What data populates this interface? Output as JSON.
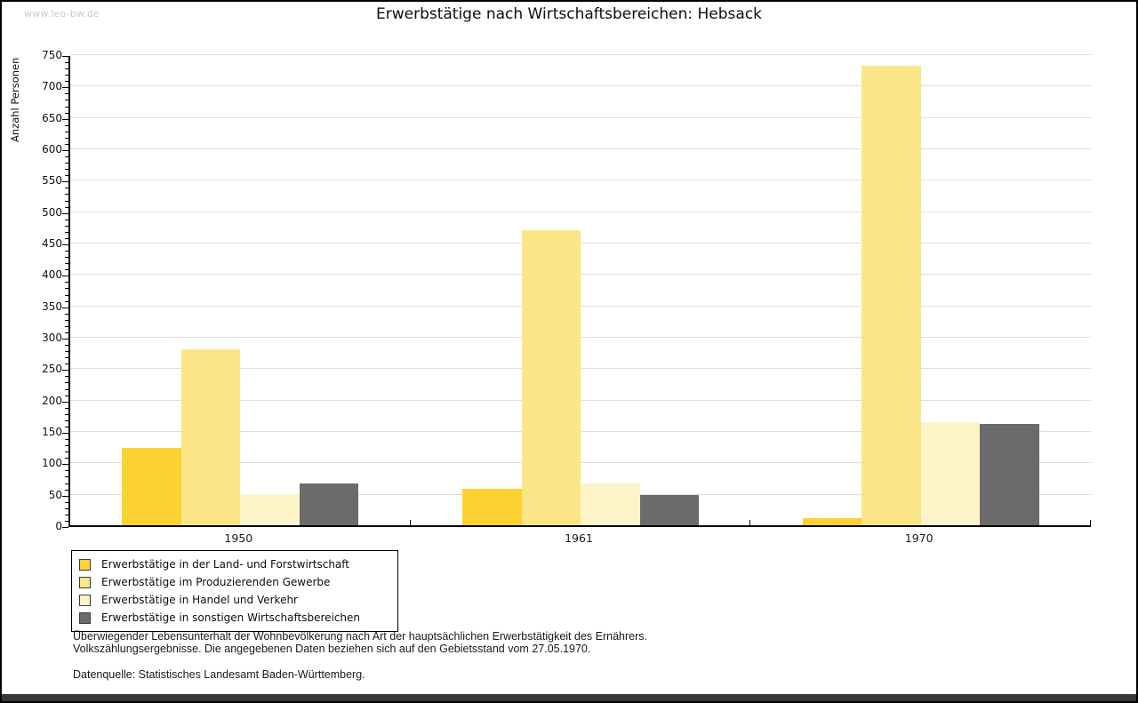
{
  "watermark": "www.leo-bw.de",
  "title": "Erwerbstätige nach Wirtschaftsbereichen: Hebsack",
  "chart_data": {
    "type": "bar",
    "title": "Erwerbstätige nach Wirtschaftsbereichen: Hebsack",
    "xlabel": "",
    "ylabel": "Anzahl Personen",
    "ylim": [
      0,
      750
    ],
    "ytick_step": 50,
    "y_minor_step": 10,
    "grid": true,
    "legend_position": "bottom-left",
    "categories": [
      "1950",
      "1961",
      "1970"
    ],
    "series": [
      {
        "name": "Erwerbstätige in der Land- und Forstwirtschaft",
        "color": "#fcd232",
        "values": [
          123,
          58,
          12
        ]
      },
      {
        "name": "Erwerbstätige im Produzierenden Gewerbe",
        "color": "#fbe687",
        "values": [
          280,
          470,
          732
        ]
      },
      {
        "name": "Erwerbstätige in Handel und Verkehr",
        "color": "#fcf4c6",
        "values": [
          50,
          66,
          164
        ]
      },
      {
        "name": "Erwerbstätige in sonstigen Wirtschaftsbereichen",
        "color": "#6b6b6b",
        "values": [
          66,
          48,
          161
        ]
      }
    ]
  },
  "footer": {
    "line1": "Überwiegender Lebensunterhalt der Wohnbevölkerung nach Art der hauptsächlichen Erwerbstätigkeit des Ernährers.",
    "line2": "Volkszählungsergebnisse. Die angegebenen Daten beziehen sich auf den Gebietsstand vom 27.05.1970.",
    "source": "Datenquelle: Statistisches Landesamt Baden-Württemberg."
  },
  "colors": {
    "grid": "#dedede",
    "axis": "#000000",
    "bottom_bar": "#373737",
    "watermark": "#c9c9c9"
  }
}
